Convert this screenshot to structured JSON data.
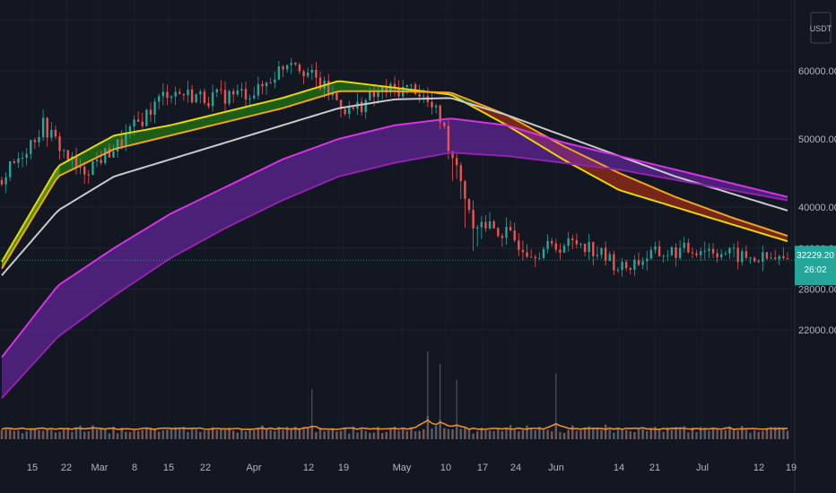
{
  "chart_data": {
    "type": "candlestick",
    "title": "",
    "price_axis": {
      "unit": "USDT",
      "ticks": [
        {
          "value": 60000,
          "label": "60000.00"
        },
        {
          "value": 50000,
          "label": "50000.00"
        },
        {
          "value": 40000,
          "label": "40000.00"
        },
        {
          "value": 34000,
          "label": "34000.00"
        },
        {
          "value": 28000,
          "label": "28000.00"
        },
        {
          "value": 22000,
          "label": "22000.00"
        }
      ]
    },
    "current_price": {
      "value": 32229.2,
      "label": "32229.20",
      "countdown": "26:02"
    },
    "date_axis": [
      "15",
      "22",
      "Mar",
      "8",
      "15",
      "22",
      "Apr",
      "12",
      "19",
      "May",
      "10",
      "17",
      "24",
      "Jun",
      "14",
      "21",
      "Jul",
      "12",
      "19"
    ],
    "price_path": {
      "index": [
        0,
        10,
        19,
        28,
        40,
        50,
        62,
        70,
        76,
        84,
        92,
        100,
        106,
        114,
        122,
        128,
        140,
        150,
        157,
        170,
        180,
        190
      ],
      "close": [
        44000,
        52000,
        45000,
        49000,
        57000,
        56000,
        57000,
        62000,
        58500,
        54000,
        57000,
        57500,
        53000,
        38000,
        36000,
        33500,
        35000,
        31000,
        33000,
        34000,
        32500,
        32229
      ]
    },
    "series": [
      {
        "id": "ema-fast-a",
        "color": "#e6d800",
        "values": [
          32000,
          46000,
          50500,
          52000,
          54000,
          56000,
          58500,
          57500,
          56500,
          52000,
          47000,
          42500,
          40000,
          37500,
          35000
        ]
      },
      {
        "id": "ema-fast-b",
        "color": "#f3a21c",
        "values": [
          31000,
          44500,
          48500,
          50500,
          52500,
          54500,
          57000,
          57000,
          56800,
          53500,
          49000,
          45000,
          41500,
          38500,
          35800
        ]
      },
      {
        "id": "ema-mid",
        "color": "#c9c9c9",
        "values": [
          30000,
          39500,
          44500,
          47000,
          49500,
          52000,
          54500,
          55800,
          56000,
          53500,
          50500,
          47500,
          44500,
          42000,
          39500
        ]
      },
      {
        "id": "ema-slow-a",
        "color": "#d633e6",
        "values": [
          18000,
          28500,
          34000,
          39000,
          43000,
          47000,
          50000,
          52000,
          53000,
          52000,
          49500,
          47500,
          45500,
          43500,
          41500
        ]
      },
      {
        "id": "ema-slow-b",
        "color": "#8e24aa",
        "values": [
          12000,
          21000,
          27000,
          32500,
          37000,
          41000,
          44500,
          46500,
          48000,
          47500,
          46500,
          45500,
          44000,
          42500,
          41000
        ]
      }
    ],
    "volume": {
      "spikes": [
        [
          0,
          0.9
        ],
        [
          22,
          1.2
        ],
        [
          44,
          1.0
        ],
        [
          75,
          1.6
        ],
        [
          103,
          2.8
        ],
        [
          106,
          2.4
        ],
        [
          110,
          1.9
        ],
        [
          134,
          2.1
        ],
        [
          155,
          1.3
        ],
        [
          176,
          1.1
        ]
      ]
    }
  }
}
